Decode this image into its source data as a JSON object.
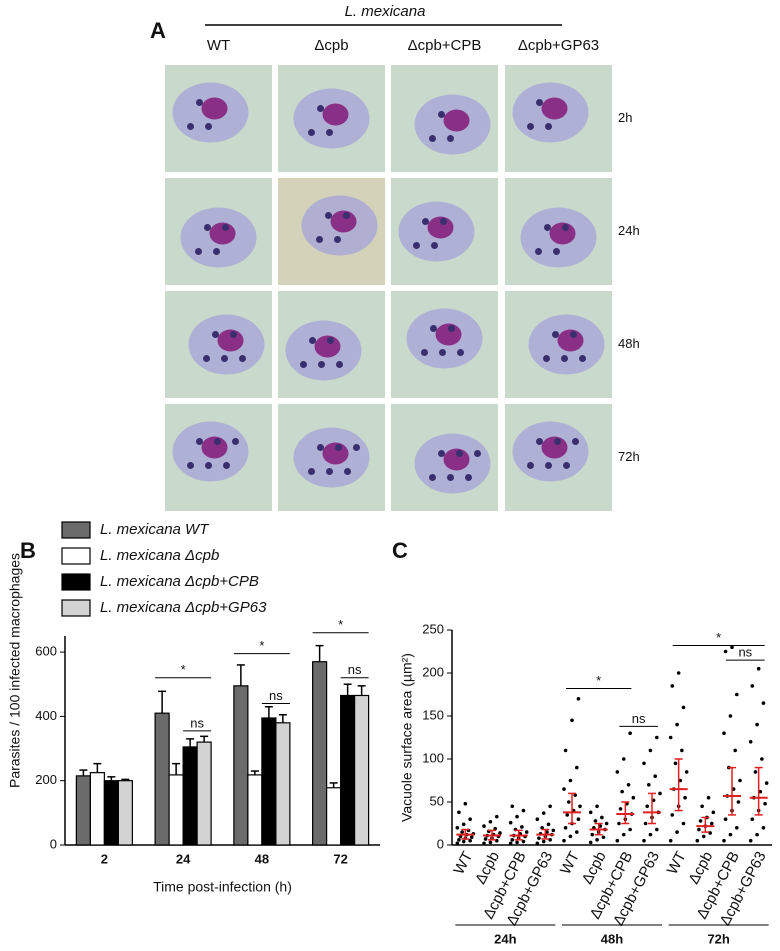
{
  "panel_a": {
    "label": "A",
    "strain": "L. mexicana",
    "columns": [
      "WT",
      "Δcpb",
      "Δcpb+CPB",
      "Δcpb+GP63"
    ],
    "rows": [
      "2h",
      "24h",
      "48h",
      "72h"
    ]
  },
  "chart_data": [
    {
      "type": "bar",
      "label": "B",
      "ylabel": "Parasites / 100 infected macrophages",
      "xlabel": "Time post-infection (h)",
      "categories": [
        "2",
        "24",
        "48",
        "72"
      ],
      "series": [
        {
          "name": "L. mexicana WT",
          "color": "#6b6b6b",
          "values": [
            215,
            410,
            495,
            570
          ],
          "errors": [
            18,
            68,
            65,
            50
          ]
        },
        {
          "name": "L. mexicana Δcpb",
          "color": "#ffffff",
          "values": [
            225,
            218,
            218,
            178
          ],
          "errors": [
            28,
            35,
            12,
            15
          ]
        },
        {
          "name": "L. mexicana Δcpb+CPB",
          "color": "#000000",
          "values": [
            200,
            305,
            395,
            465
          ],
          "errors": [
            12,
            25,
            35,
            35
          ]
        },
        {
          "name": "L. mexicana Δcpb+GP63",
          "color": "#d3d3d3",
          "values": [
            200,
            320,
            380,
            465
          ],
          "errors": [
            4,
            18,
            25,
            30
          ]
        }
      ],
      "ylim": [
        0,
        650
      ],
      "yticks": [
        0,
        200,
        400,
        600
      ],
      "annotations": [
        "*",
        "ns",
        "*",
        "ns",
        "*",
        "ns"
      ]
    },
    {
      "type": "scatter",
      "label": "C",
      "ylabel": "Vacuole surface area (µm²)",
      "categories": [
        "WT",
        "Δcpb",
        "Δcpb+CPB",
        "Δcpb+GP63",
        "WT",
        "Δcpb",
        "Δcpb+CPB",
        "Δcpb+GP63",
        "WT",
        "Δcpb",
        "Δcpb+CPB",
        "Δcpb+GP63"
      ],
      "groups": [
        "24h",
        "48h",
        "72h"
      ],
      "color": "#000000",
      "median_color": "#e02020",
      "values": [
        12,
        11,
        11,
        12,
        38,
        18,
        36,
        38,
        65,
        22,
        57,
        55
      ],
      "lower": [
        7,
        6,
        6,
        7,
        25,
        12,
        25,
        25,
        40,
        15,
        35,
        35
      ],
      "upper": [
        18,
        17,
        17,
        18,
        60,
        25,
        50,
        60,
        100,
        32,
        90,
        90
      ],
      "points": [
        [
          2,
          4,
          5,
          6,
          8,
          9,
          10,
          12,
          13,
          15,
          17,
          20,
          24,
          30,
          38,
          48
        ],
        [
          2,
          3,
          5,
          7,
          8,
          10,
          11,
          12,
          14,
          16,
          19,
          22,
          27,
          33
        ],
        [
          2,
          3,
          4,
          6,
          8,
          10,
          11,
          13,
          15,
          18,
          21,
          26,
          33,
          40,
          45
        ],
        [
          2,
          4,
          6,
          8,
          10,
          12,
          13,
          15,
          17,
          20,
          24,
          30,
          37,
          45
        ],
        [
          5,
          10,
          15,
          20,
          25,
          30,
          35,
          40,
          45,
          50,
          58,
          65,
          75,
          90,
          110,
          145,
          170
        ],
        [
          3,
          6,
          9,
          12,
          15,
          18,
          20,
          22,
          25,
          28,
          32,
          38,
          45
        ],
        [
          5,
          12,
          18,
          25,
          30,
          36,
          42,
          48,
          55,
          62,
          70,
          85,
          100,
          130
        ],
        [
          5,
          12,
          18,
          25,
          32,
          38,
          45,
          52,
          60,
          70,
          80,
          95,
          110,
          125
        ],
        [
          5,
          15,
          25,
          35,
          45,
          55,
          65,
          75,
          85,
          95,
          110,
          125,
          140,
          160,
          185,
          200
        ],
        [
          5,
          10,
          14,
          18,
          22,
          25,
          28,
          32,
          38,
          45,
          55
        ],
        [
          5,
          12,
          20,
          30,
          40,
          50,
          57,
          65,
          75,
          90,
          110,
          130,
          150,
          175,
          225,
          230
        ],
        [
          5,
          12,
          20,
          30,
          40,
          48,
          55,
          62,
          72,
          85,
          100,
          120,
          140,
          165,
          185,
          205
        ]
      ],
      "ylim": [
        0,
        250
      ],
      "yticks": [
        0,
        50,
        100,
        150,
        200,
        250
      ],
      "annotations": [
        "*",
        "ns",
        "*",
        "ns"
      ]
    }
  ]
}
